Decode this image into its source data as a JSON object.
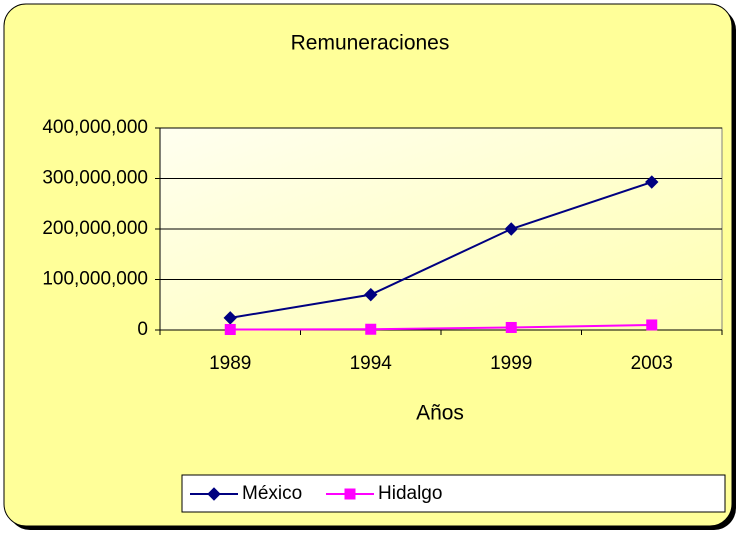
{
  "chart_data": {
    "type": "line",
    "title": "Remuneraciones",
    "x_label": "Años",
    "categories": [
      "1989",
      "1994",
      "1999",
      "2003"
    ],
    "series": [
      {
        "name": "México",
        "color": "#000080",
        "marker": "diamond",
        "values": [
          24000000,
          70000000,
          200000000,
          293000000
        ]
      },
      {
        "name": "Hidalgo",
        "color": "#FF00FF",
        "marker": "square",
        "values": [
          1000000,
          1500000,
          5000000,
          10000000
        ]
      }
    ],
    "ylim": [
      0,
      400000000
    ],
    "yticks": [
      0,
      {
        "value": 100000000,
        "label": "100,000,000"
      },
      {
        "value": 200000000,
        "label": "200,000,000"
      },
      {
        "value": 300000000,
        "label": "300,000,000"
      },
      {
        "value": 400000000,
        "label": "400,000,000"
      }
    ],
    "grid": true,
    "legend": "bottom"
  }
}
